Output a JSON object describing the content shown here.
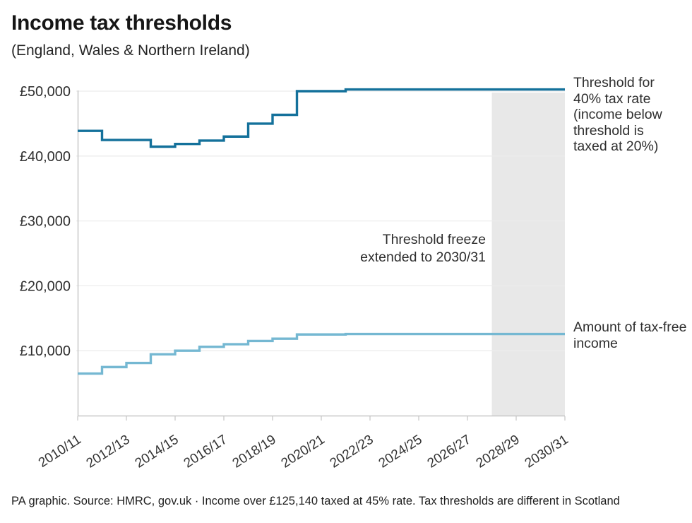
{
  "header": {
    "title": "Income tax thresholds",
    "subtitle": "(England, Wales & Northern Ireland)"
  },
  "annotations": {
    "freeze": "Threshold freeze extended to 2030/31",
    "series_top": "Threshold for 40% tax rate (income below threshold is taxed at 20%)",
    "series_bottom": "Amount of tax-free income"
  },
  "footer": {
    "text": "PA graphic. Source: HMRC, gov.uk · Income over £125,140 taxed at 45% rate. Tax thresholds are different in Scotland"
  },
  "colors": {
    "series_top": "#14719b",
    "series_bottom": "#75b8d2",
    "band": "#e8e8e8",
    "grid": "#ececec",
    "axis": "#c8c8c8"
  },
  "chart_data": {
    "type": "line",
    "subtype": "step",
    "title": "Income tax thresholds",
    "xlabel": "",
    "ylabel": "",
    "grid": "horizontal",
    "ylim": [
      0,
      51500
    ],
    "categories": [
      "2010/11",
      "2011/12",
      "2012/13",
      "2013/14",
      "2014/15",
      "2015/16",
      "2016/17",
      "2017/18",
      "2018/19",
      "2019/20",
      "2020/21",
      "2021/22",
      "2022/23",
      "2023/24",
      "2024/25",
      "2025/26",
      "2026/27",
      "2027/28",
      "2028/29",
      "2029/30",
      "2030/31"
    ],
    "x_tick_labels": [
      "2010/11",
      "2012/13",
      "2014/15",
      "2016/17",
      "2018/19",
      "2020/21",
      "2022/23",
      "2024/25",
      "2026/27",
      "2028/29",
      "2030/31"
    ],
    "y_ticks": [
      {
        "value": 10000,
        "label": "£10,000"
      },
      {
        "value": 20000,
        "label": "£20,000"
      },
      {
        "value": 30000,
        "label": "£30,000"
      },
      {
        "value": 40000,
        "label": "£40,000"
      },
      {
        "value": 50000,
        "label": "£50,000"
      }
    ],
    "series": [
      {
        "name": "Threshold for 40% tax rate (income below threshold is taxed at 20%)",
        "color": "#14719b",
        "values": [
          43875,
          42475,
          42475,
          41450,
          41865,
          42385,
          43000,
          45000,
          46350,
          50000,
          50000,
          50270,
          50270,
          50270,
          50270,
          50270,
          50270,
          50270,
          50270,
          50270,
          50270
        ]
      },
      {
        "name": "Amount of tax-free income",
        "color": "#75b8d2",
        "values": [
          6475,
          7475,
          8105,
          9440,
          10000,
          10600,
          11000,
          11500,
          11850,
          12500,
          12500,
          12570,
          12570,
          12570,
          12570,
          12570,
          12570,
          12570,
          12570,
          12570,
          12570
        ]
      }
    ],
    "highlight_band": {
      "from": "2027/28",
      "to": "2030/31",
      "color": "#e8e8e8",
      "label": "Threshold freeze extended to 2030/31"
    }
  }
}
